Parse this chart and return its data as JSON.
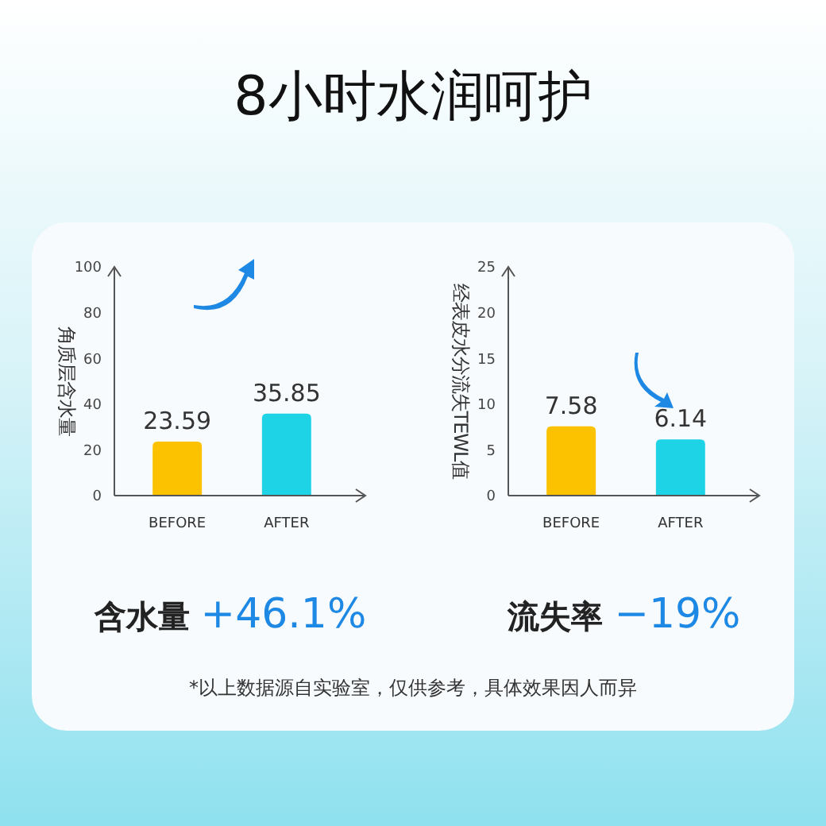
{
  "chart_data": [
    {
      "type": "bar",
      "title": "8小时水润呵护",
      "ylabel": "角质层含水量",
      "categories": [
        "BEFORE",
        "AFTER"
      ],
      "series": [
        {
          "values": [
            23.59,
            35.85
          ],
          "colors": [
            "#fcc200",
            "#1fd3e6"
          ]
        }
      ],
      "data_labels": true,
      "ylim": [
        0,
        100
      ],
      "yticks": [
        0,
        20,
        40,
        60,
        80,
        100
      ],
      "grid": false,
      "annotations": [
        "含水量 +46.1%"
      ]
    },
    {
      "type": "bar",
      "ylabel": "经表皮水分流失TEWL值",
      "categories": [
        "BEFORE",
        "AFTER"
      ],
      "series": [
        {
          "values": [
            7.58,
            6.14
          ],
          "colors": [
            "#fcc200",
            "#1fd3e6"
          ]
        }
      ],
      "data_labels": true,
      "ylim": [
        0,
        25
      ],
      "yticks": [
        0,
        5,
        10,
        15,
        20,
        25
      ],
      "grid": false,
      "annotations": [
        "流失率 −19%",
        "*以上数据源自实验室，仅供参考，具体效果因人而异"
      ]
    }
  ]
}
